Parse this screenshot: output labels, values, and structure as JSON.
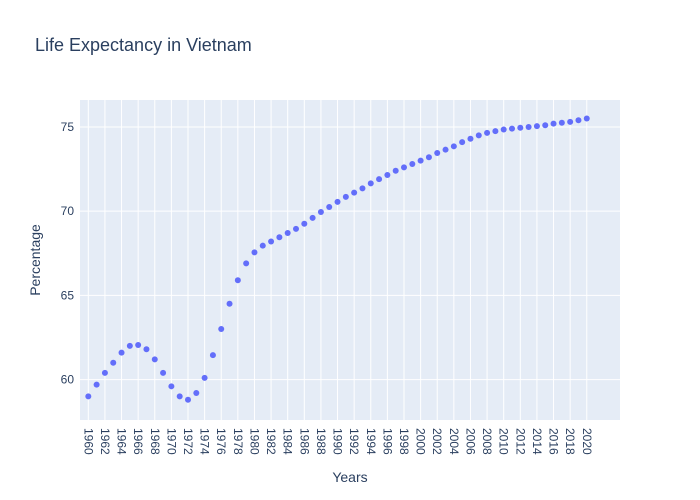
{
  "chart_data": {
    "type": "scatter",
    "title": "Life Expectancy in Vietnam",
    "xlabel": "Years",
    "ylabel": "Percentage",
    "x": [
      1960,
      1961,
      1962,
      1963,
      1964,
      1965,
      1966,
      1967,
      1968,
      1969,
      1970,
      1971,
      1972,
      1973,
      1974,
      1975,
      1976,
      1977,
      1978,
      1979,
      1980,
      1981,
      1982,
      1983,
      1984,
      1985,
      1986,
      1987,
      1988,
      1989,
      1990,
      1991,
      1992,
      1993,
      1994,
      1995,
      1996,
      1997,
      1998,
      1999,
      2000,
      2001,
      2002,
      2003,
      2004,
      2005,
      2006,
      2007,
      2008,
      2009,
      2010,
      2011,
      2012,
      2013,
      2014,
      2015,
      2016,
      2017,
      2018,
      2019,
      2020
    ],
    "y": [
      59.0,
      59.7,
      60.4,
      61.0,
      61.6,
      62.0,
      62.05,
      61.8,
      61.2,
      60.4,
      59.6,
      59.0,
      58.8,
      59.2,
      60.1,
      61.45,
      63.0,
      64.5,
      65.9,
      66.9,
      67.55,
      67.95,
      68.2,
      68.45,
      68.7,
      68.95,
      69.25,
      69.6,
      69.95,
      70.25,
      70.55,
      70.85,
      71.1,
      71.35,
      71.65,
      71.9,
      72.15,
      72.4,
      72.6,
      72.8,
      73.0,
      73.2,
      73.45,
      73.65,
      73.85,
      74.1,
      74.3,
      74.5,
      74.65,
      74.75,
      74.85,
      74.9,
      74.95,
      75.0,
      75.05,
      75.1,
      75.2,
      75.25,
      75.3,
      75.4,
      75.5
    ],
    "xticks": [
      1960,
      1962,
      1964,
      1966,
      1968,
      1970,
      1972,
      1974,
      1976,
      1978,
      1980,
      1982,
      1984,
      1986,
      1988,
      1990,
      1992,
      1994,
      1996,
      1998,
      2000,
      2002,
      2004,
      2006,
      2008,
      2010,
      2012,
      2014,
      2016,
      2018,
      2020
    ],
    "yticks": [
      60,
      65,
      70,
      75
    ],
    "xlim": [
      1959,
      2024
    ],
    "ylim": [
      57.6,
      76.6
    ],
    "grid": true,
    "marker_color": "#636efa",
    "plot_bg": "#e5ecf6"
  }
}
